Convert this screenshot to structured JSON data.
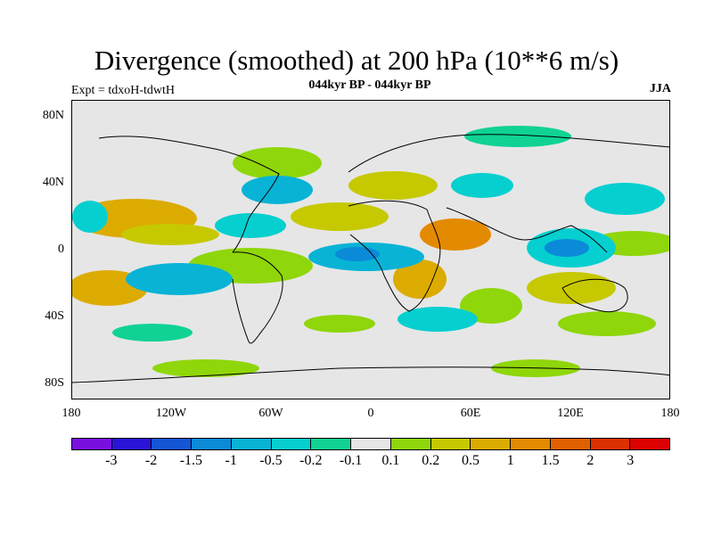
{
  "title": "Divergence (smoothed) at 200 hPa (10**6 m/s)",
  "subtitle": "044kyr BP - 044kyr BP",
  "experiment": "Expt = tdxoH-tdwtH",
  "season": "JJA",
  "y_axis_labels": [
    "80N",
    "40N",
    "0",
    "40S",
    "80S"
  ],
  "x_axis_labels": [
    "180",
    "120W",
    "60W",
    "0",
    "60E",
    "120E",
    "180"
  ],
  "colorbar": {
    "labels": [
      "-3",
      "-2",
      "-1.5",
      "-1",
      "-0.5",
      "-0.2",
      "-0.1",
      "0.1",
      "0.2",
      "0.5",
      "1",
      "1.5",
      "2",
      "3"
    ],
    "colors": [
      "#7a10e0",
      "#2a14d8",
      "#1456d6",
      "#0b8ad8",
      "#08b3d6",
      "#06cfd0",
      "#10d294",
      "#e6e6e6",
      "#8fd60a",
      "#c6c900",
      "#dcab00",
      "#e48a00",
      "#e06000",
      "#dc3000",
      "#dc0000"
    ]
  }
}
